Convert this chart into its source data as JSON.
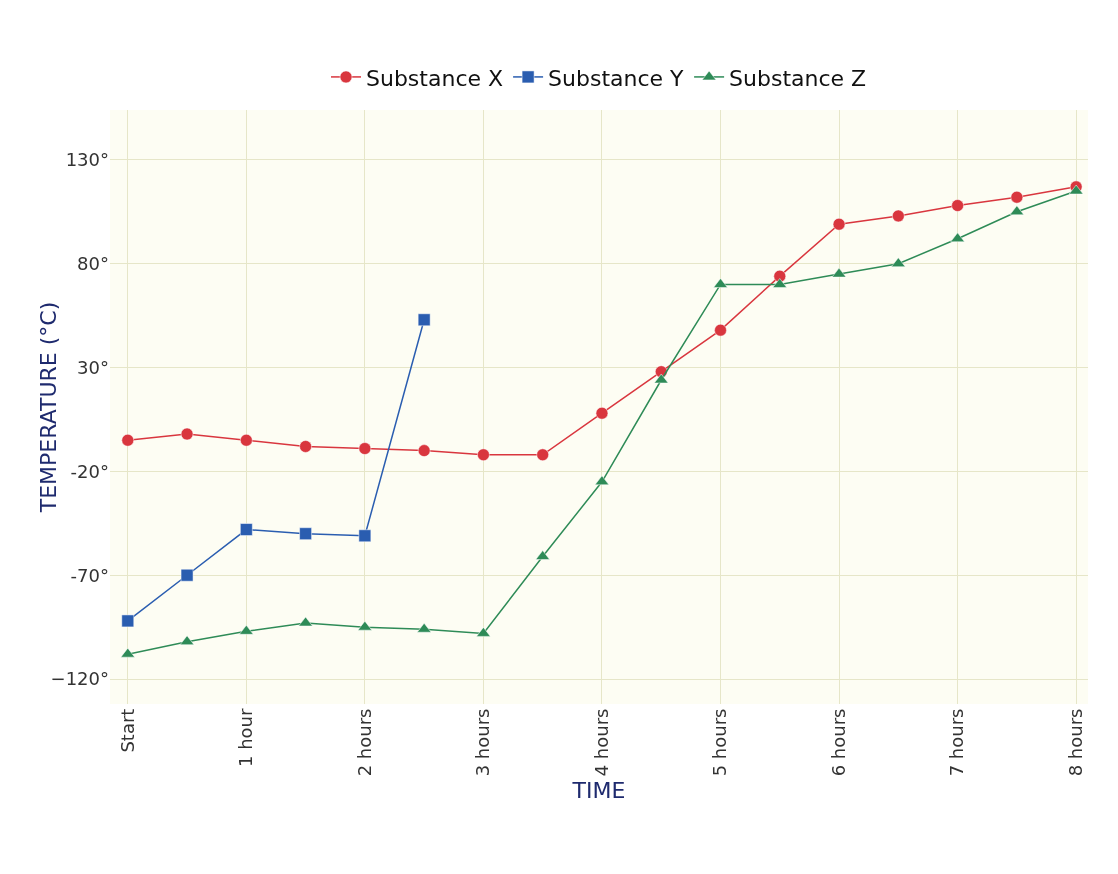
{
  "chart_data": {
    "type": "line",
    "xlabel": "TIME",
    "ylabel": "TEMPERATURE (°C)",
    "x": [
      0,
      0.5,
      1,
      1.5,
      2,
      2.5,
      3,
      3.5,
      4,
      4.5,
      5,
      5.5,
      6,
      6.5,
      7,
      7.5,
      8
    ],
    "series": [
      {
        "name": "Substance X",
        "color": "#d9363e",
        "marker": "circle",
        "values": [
          -5,
          -2,
          -5,
          -8,
          -9,
          -10,
          -12,
          -12,
          8,
          28,
          48,
          74,
          99,
          103,
          108,
          112,
          117
        ]
      },
      {
        "name": "Substance Y",
        "color": "#2a5db0",
        "marker": "square",
        "values": [
          -92,
          -70,
          -48,
          -50,
          -51,
          53,
          null,
          null,
          null,
          null,
          null,
          null,
          null,
          null,
          null,
          null,
          null
        ]
      },
      {
        "name": "Substance Z",
        "color": "#2e8b57",
        "marker": "triangle",
        "values": [
          -108,
          -102,
          -97,
          -93,
          -95,
          -96,
          -98,
          -61,
          -25,
          24,
          70,
          70,
          75,
          80,
          92,
          105,
          115
        ]
      }
    ],
    "xlim": [
      -0.15,
      8.1
    ],
    "xticks": [
      {
        "value": 0,
        "label": "Start"
      },
      {
        "value": 1,
        "label": "1 hour"
      },
      {
        "value": 2,
        "label": "2 hours"
      },
      {
        "value": 3,
        "label": "3 hours"
      },
      {
        "value": 4,
        "label": "4 hours"
      },
      {
        "value": 5,
        "label": "5 hours"
      },
      {
        "value": 6,
        "label": "6 hours"
      },
      {
        "value": 7,
        "label": "7 hours"
      },
      {
        "value": 8,
        "label": "8 hours"
      }
    ],
    "ylim": [
      -132,
      154
    ],
    "yticks": [
      {
        "value": -120,
        "label": "−120°"
      },
      {
        "value": -70,
        "label": "-70°"
      },
      {
        "value": -20,
        "label": "-20°"
      },
      {
        "value": 30,
        "label": "30°"
      },
      {
        "value": 80,
        "label": "80°"
      },
      {
        "value": 130,
        "label": "130°"
      }
    ],
    "grid": true,
    "legend": "top",
    "line_style": "solid"
  }
}
